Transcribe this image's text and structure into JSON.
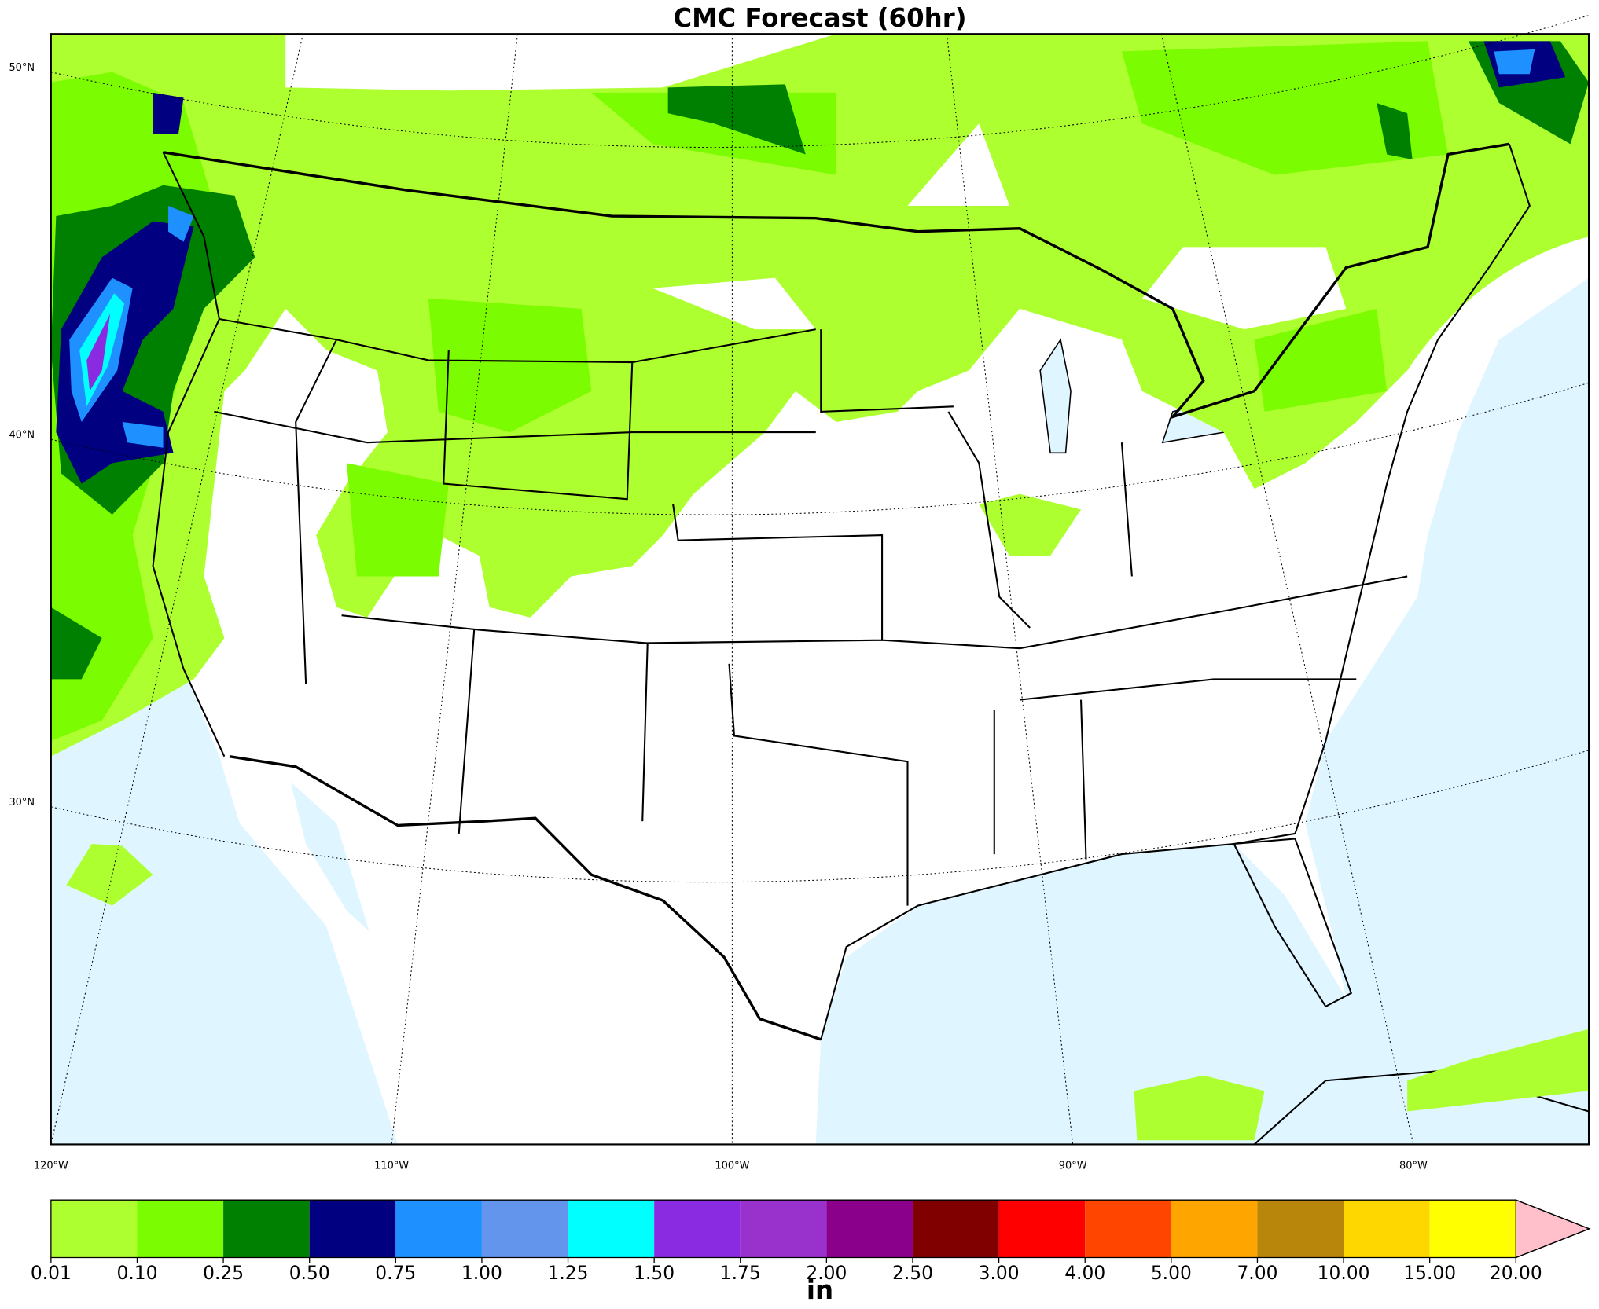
{
  "title": "CMC Forecast (60hr)",
  "graticule": {
    "latitudes": [
      {
        "value": 50,
        "label": "50°N"
      },
      {
        "value": 40,
        "label": "40°N"
      },
      {
        "value": 30,
        "label": "30°N"
      }
    ],
    "longitudes": [
      {
        "value": -120,
        "label": "120°W"
      },
      {
        "value": -110,
        "label": "110°W"
      },
      {
        "value": -100,
        "label": "100°W"
      },
      {
        "value": -90,
        "label": "90°W"
      },
      {
        "value": -80,
        "label": "80°W"
      }
    ]
  },
  "colorbar": {
    "levels": [
      0.01,
      {
        "value": 0.1,
        "label": "0.10"
      },
      0.25,
      {
        "value": 0.5,
        "label": "0.50"
      },
      0.75,
      {
        "value": 1,
        "label": "1.00"
      },
      1.25,
      {
        "value": 1.5,
        "label": "1.50"
      },
      1.75,
      {
        "value": 2,
        "label": "2.00"
      },
      {
        "value": 2.5,
        "label": "2.50"
      },
      {
        "value": 3,
        "label": "3.00"
      },
      {
        "value": 4,
        "label": "4.00"
      },
      {
        "value": 5,
        "label": "5.00"
      },
      {
        "value": 7,
        "label": "7.00"
      },
      {
        "value": 10,
        "label": "10.00"
      },
      {
        "value": 15,
        "label": "15.00"
      },
      {
        "value": 20,
        "label": "20.00"
      }
    ],
    "colors": [
      "#adff2f",
      "#7cfc00",
      "#008000",
      "#000080",
      "#1e90ff",
      "#6495ed",
      "#00ffff",
      "#8a2be2",
      "#9932cc",
      "#8b008b",
      "#800000",
      "#ff0000",
      "#ff4500",
      "#ffa500",
      "#b8860b",
      "#ffd700",
      "#ffff00"
    ],
    "extend_color": "#ffc0cb",
    "unit": "in"
  }
}
